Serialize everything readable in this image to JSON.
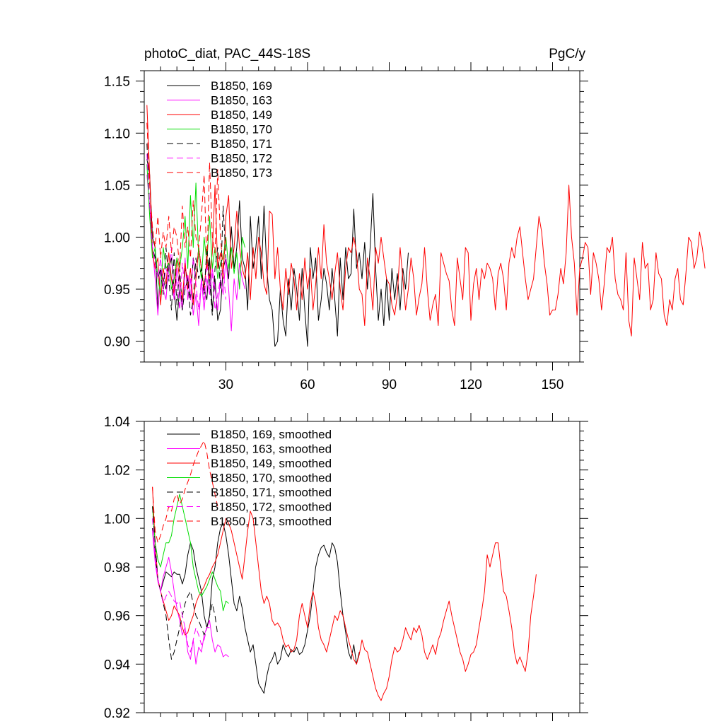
{
  "chart_data": [
    {
      "type": "line",
      "title": "photoC_diat, PAC_44S-18S",
      "units": "PgC/y",
      "xlabel": "",
      "ylabel": "",
      "xlim": [
        0,
        160
      ],
      "ylim": [
        0.88,
        1.16
      ],
      "xticks": [
        30,
        60,
        90,
        120,
        150
      ],
      "xtick_labels": [
        "30",
        "60",
        "90",
        "120",
        "150"
      ],
      "yticks": [
        0.9,
        0.95,
        1.0,
        1.05,
        1.1,
        1.15
      ],
      "ytick_labels": [
        "0.90",
        "0.95",
        "1.00",
        "1.05",
        "1.10",
        "1.15"
      ],
      "grid": false,
      "legend_position": "top-left",
      "series": [
        {
          "name": "B1850, 169",
          "color": "#000000",
          "dash": "solid",
          "x_start": 1,
          "values": [
            1.075,
            1.06,
            1.0,
            0.99,
            0.93,
            0.97,
            0.96,
            0.95,
            0.97,
            0.98,
            0.95,
            0.92,
            0.95,
            0.93,
            0.97,
            0.96,
            0.94,
            0.98,
            0.96,
            0.99,
            0.97,
            0.95,
            0.94,
            0.98,
            0.93,
            0.96,
            0.92,
            0.93,
            0.97,
            0.98,
            0.96,
            1.01,
            0.97,
            0.99,
            1.035,
            0.98,
            0.97,
            0.93,
            1.02,
            0.97,
            0.99,
            1.02,
            0.96,
            1.03,
            0.97,
            0.94,
            0.93,
            0.895,
            0.9,
            0.95,
            0.92,
            0.905,
            0.96,
            0.93,
            0.97,
            0.95,
            0.92,
            0.97,
            0.93,
            0.895,
            0.99,
            0.96,
            0.98,
            0.92,
            0.94,
            0.97,
            0.955,
            0.93,
            0.97,
            0.94,
            0.905,
            0.98,
            0.94,
            0.99,
            0.96,
            0.965,
            1.027,
            0.97,
            0.985,
            0.96,
            0.995,
            0.95,
            0.99,
            1.042,
            0.97,
            0.92,
            0.95,
            0.915,
            0.96,
            0.92,
            0.97,
            0.94,
            0.965,
            0.93,
            0.97,
            0.95,
            0.985
          ]
        },
        {
          "name": "B1850, 163",
          "color": "#ff00ff",
          "dash": "solid",
          "x_start": 1,
          "values": [
            1.06,
            1.03,
            0.99,
            0.96,
            0.925,
            0.97,
            0.95,
            0.94,
            0.975,
            0.96,
            0.94,
            0.97,
            0.95,
            0.93,
            0.98,
            0.94,
            0.96,
            0.925,
            0.945,
            0.915,
            0.96,
            0.93,
            0.96,
            0.945,
            0.97,
            0.95,
            0.93,
            0.96,
            0.945,
            0.98,
            0.95,
            0.91,
            0.96,
            0.94,
            0.975,
            0.96,
            0.95
          ]
        },
        {
          "name": "B1850, 149",
          "color": "#ff0000",
          "dash": "solid",
          "x_start": 1,
          "values": [
            1.127,
            1.06,
            0.985,
            0.97,
            0.98,
            0.935,
            0.97,
            0.955,
            0.985,
            0.96,
            0.945,
            0.98,
            0.96,
            0.94,
            0.975,
            0.95,
            0.97,
            0.935,
            0.96,
            0.99,
            0.97,
            0.95,
            0.98,
            0.96,
            0.985,
            1.05,
            0.97,
            0.985,
            0.96,
            1.02,
            1.04,
            0.97,
            0.99,
            1.025,
            0.99,
            0.97,
            0.96,
            0.985,
            0.94,
            0.99,
            0.96,
            1.0,
            0.985,
            0.955,
            0.945,
            1.025,
            1.022,
            0.96,
            0.99,
            0.95,
            0.93,
            0.97,
            0.945,
            0.975,
            0.96,
            0.93,
            0.965,
            0.94,
            0.98,
            0.95,
            0.97,
            0.93,
            0.955,
            0.99,
            0.96,
            1.012,
            0.975,
            0.96,
            0.94,
            0.965,
            0.985,
            0.95,
            0.93,
            0.97,
            0.99,
            0.985,
            1.0,
            0.985,
            0.95,
            0.945,
            0.915,
            0.98,
            0.96,
            0.93,
            0.99,
            0.975,
            1.0,
            0.98,
            0.96,
            0.955,
            0.935,
            0.925,
            0.945,
            0.99,
            0.96,
            0.93,
            0.95,
            0.98,
            0.96,
            0.925,
            0.942,
            0.955,
            0.99,
            0.95,
            0.92,
            0.935,
            0.945,
            0.915,
            0.985,
            0.975,
            0.965,
            0.958,
            0.93,
            0.915,
            0.98,
            0.96,
            0.94,
            0.99,
            0.985,
            0.92,
            0.955,
            0.97,
            0.94,
            0.97,
            0.96,
            0.975,
            0.97,
            0.96,
            0.93,
            0.965,
            0.975,
            0.96,
            0.93,
            0.975,
            0.99,
            0.98,
            1.0,
            1.01,
            0.985,
            0.96,
            0.94,
            0.95,
            0.96,
            0.99,
            1.02,
            1.005,
            0.975,
            0.955,
            0.925,
            0.93,
            0.93,
            0.945,
            0.97,
            0.955,
            0.985,
            1.05,
            1.0,
            0.975,
            0.925,
            0.97,
            0.98,
            0.995,
            0.99,
            0.945,
            0.985,
            0.975,
            0.96,
            0.93,
            0.955,
            0.99,
            0.985,
            1.0,
            0.96,
            0.945,
            0.94,
            0.93,
            0.985,
            0.92,
            0.905,
            0.98,
            0.96,
            0.94,
            0.995,
            0.97,
            0.975,
            0.93,
            0.94,
            0.985,
            0.965,
            0.96,
            0.925,
            0.915,
            0.94,
            0.93,
            0.96,
            0.97,
            0.94,
            0.935,
            0.965,
            1.0,
            0.995,
            0.97,
            0.98,
            1.005,
            0.99,
            0.97
          ]
        },
        {
          "name": "B1850, 170",
          "color": "#00dd00",
          "dash": "solid",
          "x_start": 1,
          "values": [
            1.07,
            1.02,
            0.98,
            0.99,
            0.96,
            0.945,
            0.99,
            0.97,
            0.975,
            0.95,
            0.96,
            0.98,
            0.97,
            0.99,
            1.02,
            0.97,
            1.04,
            0.99,
            1.052,
            0.98,
            0.96,
            1.0,
            0.975,
            1.02,
            0.97,
            0.99,
            0.96,
            0.975,
            0.98,
            1.0,
            0.97,
            0.99,
            0.965,
            0.985,
            0.95,
            1.0,
            0.99
          ]
        },
        {
          "name": "B1850, 171",
          "color": "#000000",
          "dash": "dashed",
          "x_start": 1,
          "values": [
            1.09,
            1.03,
            0.99,
            0.98,
            0.96,
            0.97,
            0.945,
            0.99,
            0.96,
            0.93,
            0.985,
            0.935,
            0.97,
            0.93,
            0.95,
            0.96,
            0.925,
            0.94,
            0.98,
            0.96,
            0.97,
            0.945,
            0.99,
            0.96,
            0.925,
            0.97,
            0.99,
            0.95,
            1.03,
            0.98
          ]
        },
        {
          "name": "B1850, 172",
          "color": "#ff00ff",
          "dash": "dashed",
          "x_start": 1,
          "values": [
            1.08,
            1.03,
            0.99,
            0.975,
            0.96,
            0.98,
            0.95,
            0.97,
            0.96,
            0.99,
            0.945,
            0.96,
            0.93,
            0.975,
            0.95,
            0.965,
            0.94,
            0.98,
            0.955,
            0.93,
            0.96,
            0.94,
            0.975,
            0.95,
            0.965,
            0.93,
            0.945,
            0.96,
            0.97,
            0.94
          ]
        },
        {
          "name": "B1850, 173",
          "color": "#ff0000",
          "dash": "dashed",
          "x_start": 1,
          "values": [
            1.11,
            1.05,
            1.01,
            0.99,
            1.02,
            0.98,
            1.005,
            0.99,
            1.02,
            0.985,
            1.01,
            1.0,
            0.97,
            1.03,
            0.99,
            1.01,
            0.98,
            1.035,
            1.0,
            0.99,
            1.02,
            1.06,
            0.97,
            1.072,
            1.0,
            0.985,
            1.065,
            1.0,
            0.97,
            1.0
          ]
        }
      ]
    },
    {
      "type": "line",
      "title": "",
      "xlabel": "",
      "ylabel": "",
      "xlim": [
        0,
        160
      ],
      "ylim": [
        0.92,
        1.04
      ],
      "xticks": [
        30,
        60,
        90,
        120,
        150
      ],
      "yticks": [
        0.92,
        0.94,
        0.96,
        0.98,
        1.0,
        1.02,
        1.04
      ],
      "ytick_labels": [
        "0.92",
        "0.94",
        "0.96",
        "0.98",
        "1.00",
        "1.02",
        "1.04"
      ],
      "grid": false,
      "legend_position": "top-left",
      "series": [
        {
          "name": "B1850, 169, smoothed",
          "color": "#000000",
          "dash": "solid",
          "x_start": 3,
          "values": [
            0.996,
            0.985,
            0.975,
            0.97,
            0.974,
            0.978,
            0.977,
            0.976,
            0.978,
            0.977,
            0.977,
            0.973,
            0.977,
            0.985,
            0.99,
            0.987,
            0.98,
            0.975,
            0.97,
            0.96,
            0.955,
            0.96,
            0.975,
            0.98,
            0.99,
            0.996,
            0.998,
            0.993,
            0.985,
            0.975,
            0.965,
            0.962,
            0.968,
            0.963,
            0.955,
            0.95,
            0.945,
            0.948,
            0.94,
            0.932,
            0.93,
            0.928,
            0.935,
            0.94,
            0.942,
            0.945,
            0.94,
            0.942,
            0.948,
            0.945,
            0.943,
            0.946,
            0.945,
            0.947,
            0.944,
            0.945,
            0.948,
            0.954,
            0.96,
            0.97,
            0.98,
            0.985,
            0.988,
            0.989,
            0.986,
            0.984,
            0.99,
            0.988,
            0.982,
            0.97,
            0.96,
            0.953,
            0.945,
            0.942,
            0.948,
            0.94,
            0.945
          ]
        },
        {
          "name": "B1850, 163, smoothed",
          "color": "#ff00ff",
          "dash": "solid",
          "x_start": 3,
          "values": [
            0.995,
            0.982,
            0.974,
            0.97,
            0.976,
            0.98,
            0.984,
            0.978,
            0.97,
            0.963,
            0.958,
            0.952,
            0.955,
            0.945,
            0.942,
            0.95,
            0.94,
            0.947,
            0.945,
            0.952,
            0.955,
            0.958,
            0.95,
            0.945,
            0.948,
            0.947,
            0.943,
            0.944,
            0.943
          ]
        },
        {
          "name": "B1850, 149, smoothed",
          "color": "#ff0000",
          "dash": "solid",
          "x_start": 3,
          "values": [
            1.013,
            0.99,
            0.975,
            0.97,
            0.966,
            0.962,
            0.958,
            0.96,
            0.964,
            0.962,
            0.96,
            0.955,
            0.952,
            0.953,
            0.957,
            0.96,
            0.965,
            0.968,
            0.97,
            0.972,
            0.975,
            0.977,
            0.98,
            0.982,
            0.985,
            0.99,
            0.995,
            1.0,
            0.998,
            0.995,
            0.99,
            0.985,
            0.98,
            0.975,
            0.985,
            0.995,
            1.003,
            1.0,
            0.99,
            0.98,
            0.97,
            0.965,
            0.968,
            0.965,
            0.958,
            0.956,
            0.957,
            0.955,
            0.95,
            0.947,
            0.948,
            0.945,
            0.946,
            0.95,
            0.96,
            0.965,
            0.96,
            0.955,
            0.965,
            0.97,
            0.965,
            0.955,
            0.95,
            0.948,
            0.945,
            0.95,
            0.955,
            0.96,
            0.958,
            0.962,
            0.96,
            0.955,
            0.95,
            0.946,
            0.942,
            0.94,
            0.944,
            0.95,
            0.946,
            0.945,
            0.94,
            0.935,
            0.93,
            0.927,
            0.925,
            0.928,
            0.93,
            0.935,
            0.942,
            0.947,
            0.945,
            0.946,
            0.95,
            0.955,
            0.952,
            0.95,
            0.955,
            0.953,
            0.956,
            0.952,
            0.945,
            0.942,
            0.945,
            0.948,
            0.944,
            0.95,
            0.953,
            0.958,
            0.962,
            0.966,
            0.96,
            0.955,
            0.95,
            0.945,
            0.942,
            0.937,
            0.94,
            0.944,
            0.945,
            0.948,
            0.955,
            0.962,
            0.97,
            0.985,
            0.98,
            0.985,
            0.99,
            0.99,
            0.98,
            0.97,
            0.968,
            0.962,
            0.955,
            0.945,
            0.94,
            0.943,
            0.94,
            0.937,
            0.945,
            0.96,
            0.968,
            0.977
          ]
        },
        {
          "name": "B1850, 170, smoothed",
          "color": "#00dd00",
          "dash": "solid",
          "x_start": 3,
          "values": [
            1.005,
            0.99,
            0.983,
            0.98,
            0.985,
            0.99,
            0.99,
            0.993,
            1.0,
            1.005,
            1.01,
            1.005,
            1.0,
            0.995,
            0.99,
            0.98,
            0.975,
            0.97,
            0.968,
            0.97,
            0.972,
            0.975,
            0.978,
            0.975,
            0.972,
            0.97,
            0.962,
            0.966,
            0.965
          ]
        },
        {
          "name": "B1850, 171, smoothed",
          "color": "#000000",
          "dash": "dashed",
          "x_start": 3,
          "values": [
            1.005,
            0.99,
            0.975,
            0.97,
            0.965,
            0.96,
            0.95,
            0.942,
            0.945,
            0.95,
            0.955,
            0.96,
            0.965,
            0.968,
            0.97,
            0.965,
            0.96,
            0.958,
            0.955,
            0.952,
            0.955,
            0.96,
            0.965,
            0.96,
            0.952
          ]
        },
        {
          "name": "B1850, 172, smoothed",
          "color": "#ff00ff",
          "dash": "dashed",
          "x_start": 3,
          "values": [
            1.0,
            0.985,
            0.975,
            0.97,
            0.965,
            0.968,
            0.97,
            0.968,
            0.966,
            0.965,
            0.966,
            0.96,
            0.955,
            0.948,
            0.945,
            0.95,
            0.955,
            0.952,
            0.948,
            0.95,
            0.955,
            0.955
          ]
        },
        {
          "name": "B1850, 173, smoothed",
          "color": "#ff0000",
          "dash": "dashed",
          "x_start": 3,
          "values": [
            1.013,
            0.995,
            0.99,
            0.993,
            0.997,
            1.0,
            1.005,
            1.003,
            1.008,
            1.01,
            1.006,
            1.008,
            1.012,
            1.015,
            1.018,
            1.022,
            1.025,
            1.028,
            1.03,
            1.032,
            1.027,
            1.02,
            1.015,
            1.01,
            1.005
          ]
        }
      ]
    }
  ]
}
